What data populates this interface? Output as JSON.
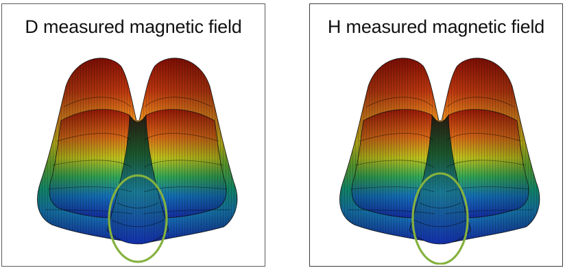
{
  "panels": [
    {
      "title": "D measured magnetic field"
    },
    {
      "title": "H measured magnetic field"
    }
  ],
  "colors": {
    "surface_top": "#9b1407",
    "surface_upper": "#e8771b",
    "surface_mid": "#b9cc1b",
    "surface_lower": "#25b16a",
    "surface_bottom": "#1a33b8",
    "highlight_ellipse": "#84b23e",
    "frame": "#5a5a5a"
  },
  "icons": {
    "highlight": "ellipse-highlight",
    "surface": "3d-surface-plot"
  }
}
